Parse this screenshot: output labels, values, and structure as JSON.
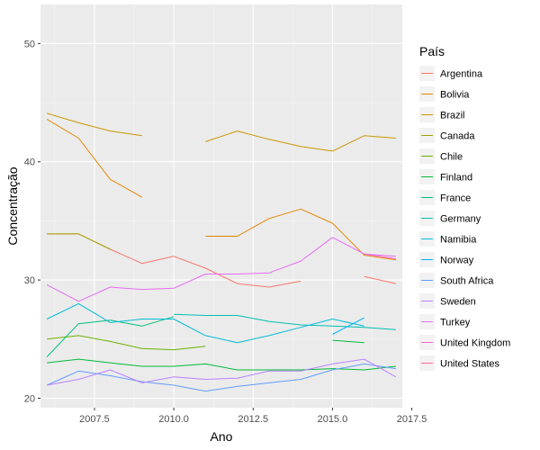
{
  "chart_data": {
    "type": "line",
    "title": "",
    "xlabel": "Ano",
    "ylabel": "Concentração",
    "xlim": [
      2005.8,
      2017.2
    ],
    "ylim": [
      19.2,
      53.3
    ],
    "x_ticks": [
      2007.5,
      2010.0,
      2012.5,
      2015.0,
      2017.5
    ],
    "x_tick_labels": [
      "2007.5",
      "2010.0",
      "2012.5",
      "2015.0",
      "2017.5"
    ],
    "y_ticks": [
      20,
      30,
      40,
      50
    ],
    "y_tick_labels": [
      "20",
      "30",
      "40",
      "50"
    ],
    "grid": true,
    "legend": {
      "title": "País",
      "placement": "right"
    },
    "panel_background": "#ebebeb",
    "series": [
      {
        "name": "Argentina",
        "color": "#F8766D",
        "segments": [
          [
            [
              2006,
              33.9
            ],
            [
              2007,
              33.9
            ],
            [
              2008,
              32.6
            ],
            [
              2009,
              31.4
            ],
            [
              2010,
              32.0
            ],
            [
              2011,
              31.0
            ],
            [
              2012,
              29.7
            ],
            [
              2013,
              29.4
            ],
            [
              2014,
              29.9
            ]
          ],
          [
            [
              2016,
              30.3
            ],
            [
              2017,
              29.7
            ]
          ]
        ]
      },
      {
        "name": "Bolivia",
        "color": "#E58700",
        "segments": [
          [
            [
              2006,
              43.6
            ],
            [
              2007,
              42.0
            ],
            [
              2008,
              38.5
            ],
            [
              2009,
              37.0
            ]
          ],
          [
            [
              2011,
              33.7
            ],
            [
              2012,
              33.7
            ],
            [
              2013,
              35.2
            ],
            [
              2014,
              36.0
            ],
            [
              2015,
              34.8
            ],
            [
              2016,
              32.1
            ],
            [
              2017,
              31.7
            ]
          ]
        ]
      },
      {
        "name": "Brazil",
        "color": "#C99800",
        "segments": [
          [
            [
              2006,
              44.1
            ],
            [
              2007,
              43.3
            ],
            [
              2008,
              42.6
            ],
            [
              2009,
              42.2
            ]
          ],
          [
            [
              2011,
              41.7
            ],
            [
              2012,
              42.6
            ],
            [
              2013,
              41.9
            ],
            [
              2014,
              41.3
            ],
            [
              2015,
              40.9
            ],
            [
              2016,
              42.2
            ],
            [
              2017,
              42.0
            ]
          ]
        ]
      },
      {
        "name": "Canada",
        "color": "#A3A500",
        "segments": [
          [
            [
              2006,
              33.9
            ],
            [
              2007,
              33.9
            ],
            [
              2008,
              32.6
            ]
          ]
        ]
      },
      {
        "name": "Chile",
        "color": "#6BB100",
        "segments": [
          [
            [
              2006,
              25.0
            ],
            [
              2007,
              25.3
            ],
            [
              2008,
              24.8
            ],
            [
              2009,
              24.2
            ],
            [
              2010,
              24.1
            ],
            [
              2011,
              24.4
            ]
          ]
        ]
      },
      {
        "name": "Finland",
        "color": "#00BA38",
        "segments": [
          [
            [
              2006,
              23.0
            ],
            [
              2007,
              23.3
            ],
            [
              2008,
              23.0
            ],
            [
              2009,
              22.7
            ],
            [
              2010,
              22.7
            ],
            [
              2011,
              22.9
            ],
            [
              2012,
              22.4
            ],
            [
              2013,
              22.4
            ],
            [
              2014,
              22.4
            ],
            [
              2015,
              22.5
            ],
            [
              2016,
              22.4
            ],
            [
              2017,
              22.7
            ]
          ],
          [
            [
              2015,
              24.9
            ],
            [
              2016,
              24.7
            ]
          ]
        ]
      },
      {
        "name": "France",
        "color": "#00BF7D",
        "segments": [
          [
            [
              2006,
              23.5
            ],
            [
              2007,
              26.3
            ],
            [
              2008,
              26.6
            ],
            [
              2009,
              26.1
            ],
            [
              2010,
              26.9
            ]
          ]
        ]
      },
      {
        "name": "Germany",
        "color": "#00C0AF",
        "segments": [
          [
            [
              2010,
              27.1
            ],
            [
              2011,
              27.0
            ],
            [
              2012,
              27.0
            ],
            [
              2013,
              26.5
            ],
            [
              2014,
              26.2
            ],
            [
              2015,
              26.1
            ],
            [
              2016,
              26.0
            ],
            [
              2017,
              25.8
            ]
          ]
        ]
      },
      {
        "name": "Namibia",
        "color": "#00BCD8",
        "segments": [
          [
            [
              2006,
              26.7
            ],
            [
              2007,
              28.0
            ],
            [
              2008,
              26.4
            ],
            [
              2009,
              26.7
            ],
            [
              2010,
              26.7
            ],
            [
              2011,
              25.3
            ],
            [
              2012,
              24.7
            ],
            [
              2013,
              25.3
            ],
            [
              2014,
              26.0
            ],
            [
              2015,
              26.7
            ],
            [
              2016,
              26.1
            ]
          ]
        ]
      },
      {
        "name": "Norway",
        "color": "#00B0F6",
        "segments": [
          [
            [
              2015,
              25.4
            ],
            [
              2016,
              26.8
            ]
          ]
        ]
      },
      {
        "name": "South Africa",
        "color": "#619CFF",
        "segments": [
          [
            [
              2006,
              21.1
            ],
            [
              2007,
              22.3
            ],
            [
              2008,
              21.9
            ],
            [
              2009,
              21.4
            ],
            [
              2010,
              21.1
            ],
            [
              2011,
              20.6
            ],
            [
              2012,
              21.0
            ],
            [
              2013,
              21.3
            ],
            [
              2014,
              21.6
            ],
            [
              2015,
              22.4
            ],
            [
              2016,
              22.9
            ],
            [
              2017,
              22.5
            ]
          ]
        ]
      },
      {
        "name": "Sweden",
        "color": "#B983FF",
        "segments": [
          [
            [
              2006,
              21.1
            ],
            [
              2007,
              21.6
            ],
            [
              2008,
              22.4
            ],
            [
              2009,
              21.3
            ],
            [
              2010,
              21.8
            ],
            [
              2011,
              21.6
            ],
            [
              2012,
              21.7
            ],
            [
              2013,
              22.3
            ],
            [
              2014,
              22.3
            ],
            [
              2015,
              22.9
            ],
            [
              2016,
              23.3
            ],
            [
              2017,
              21.8
            ]
          ]
        ]
      },
      {
        "name": "Turkey",
        "color": "#E76BF3",
        "segments": [
          [
            [
              2006,
              29.6
            ],
            [
              2007,
              28.2
            ],
            [
              2008,
              29.4
            ],
            [
              2009,
              29.2
            ],
            [
              2010,
              29.3
            ],
            [
              2011,
              30.5
            ],
            [
              2012,
              30.5
            ],
            [
              2013,
              30.6
            ],
            [
              2014,
              31.6
            ],
            [
              2015,
              33.6
            ],
            [
              2016,
              32.2
            ],
            [
              2017,
              32.0
            ]
          ]
        ]
      },
      {
        "name": "United Kingdom",
        "color": "#FD61D1",
        "segments": [
          [
            [
              2016,
              32.2
            ],
            [
              2017,
              31.8
            ]
          ]
        ]
      },
      {
        "name": "United States",
        "color": "#FF67A4",
        "segments": []
      }
    ]
  }
}
